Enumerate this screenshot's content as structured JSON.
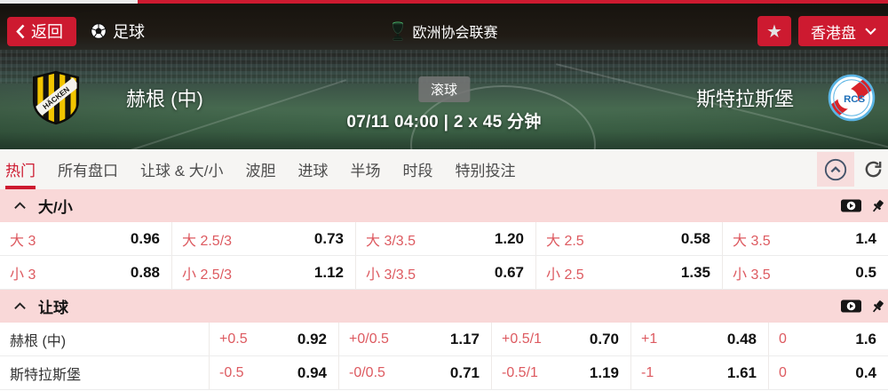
{
  "colors": {
    "accent_red": "#cd1a30",
    "market_header_pink": "#f9d8d8",
    "odds_label_red": "#dd5a60",
    "odds_value_black": "#111111",
    "tabbar_bg": "#f6f5f3"
  },
  "top_bar": {
    "back_label": "返回",
    "sport_label": "足球",
    "league_label": "欧洲协会联赛",
    "odds_type_label": "香港盘"
  },
  "match": {
    "home_team": "赫根 (中)",
    "away_team": "斯特拉斯堡",
    "live_badge": "滚球",
    "kickoff_info": "07/11 04:00 | 2 x 45 分钟"
  },
  "tabs": [
    {
      "label": "热门",
      "active": true
    },
    {
      "label": "所有盘口",
      "active": false
    },
    {
      "label": "让球 & 大/小",
      "active": false
    },
    {
      "label": "波胆",
      "active": false
    },
    {
      "label": "进球",
      "active": false
    },
    {
      "label": "半场",
      "active": false
    },
    {
      "label": "时段",
      "active": false
    },
    {
      "label": "特别投注",
      "active": false
    }
  ],
  "icons": {
    "back": "chevron-left-icon",
    "sport": "soccer-ball-icon",
    "league": "trophy-icon",
    "favorite": "star-icon",
    "odds_type": "chevron-down-icon",
    "collapse_all": "collapse-circle-icon",
    "refresh": "refresh-icon",
    "market_collapse": "chevron-up-icon",
    "cashout": "cashout-banknote-icon",
    "pin": "pin-icon"
  },
  "markets": [
    {
      "title": "大/小",
      "rows": [
        {
          "cells": [
            {
              "label": "大 3",
              "odds": "0.96"
            },
            {
              "label": "大 2.5/3",
              "odds": "0.73"
            },
            {
              "label": "大 3/3.5",
              "odds": "1.20"
            },
            {
              "label": "大 2.5",
              "odds": "0.58"
            },
            {
              "label": "大 3.5",
              "odds": "1.4"
            }
          ]
        },
        {
          "cells": [
            {
              "label": "小 3",
              "odds": "0.88"
            },
            {
              "label": "小 2.5/3",
              "odds": "1.12"
            },
            {
              "label": "小 3/3.5",
              "odds": "0.67"
            },
            {
              "label": "小 2.5",
              "odds": "1.35"
            },
            {
              "label": "小 3.5",
              "odds": "0.5"
            }
          ]
        }
      ]
    },
    {
      "title": "让球",
      "rows": [
        {
          "team": "赫根 (中)",
          "cells": [
            {
              "label": "+0.5",
              "odds": "0.92"
            },
            {
              "label": "+0/0.5",
              "odds": "1.17"
            },
            {
              "label": "+0.5/1",
              "odds": "0.70"
            },
            {
              "label": "+1",
              "odds": "0.48"
            },
            {
              "label": "0",
              "odds": "1.6"
            }
          ]
        },
        {
          "team": "斯特拉斯堡",
          "cells": [
            {
              "label": "-0.5",
              "odds": "0.94"
            },
            {
              "label": "-0/0.5",
              "odds": "0.71"
            },
            {
              "label": "-0.5/1",
              "odds": "1.19"
            },
            {
              "label": "-1",
              "odds": "1.61"
            },
            {
              "label": "0",
              "odds": "0.4"
            }
          ]
        }
      ]
    }
  ]
}
